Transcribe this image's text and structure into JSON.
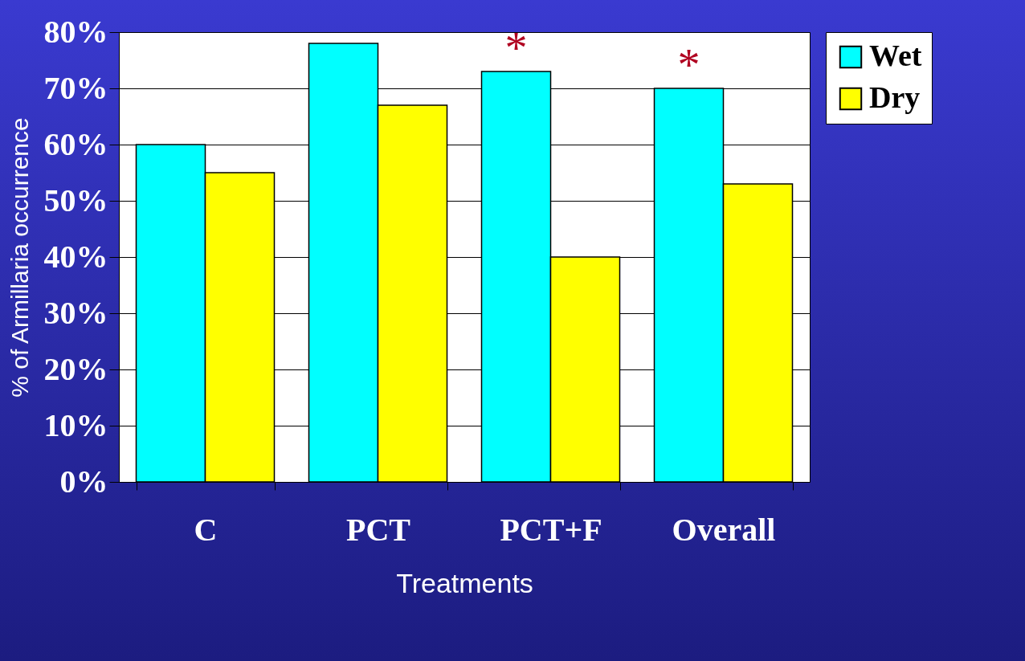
{
  "chart_data": {
    "type": "bar",
    "xlabel": "Treatments",
    "ylabel": "% of Armillaria occurrence",
    "categories": [
      "C",
      "PCT",
      "PCT+F",
      "Overall"
    ],
    "series": [
      {
        "name": "Wet",
        "color": "#00ffff",
        "values": [
          60,
          78,
          73,
          70
        ]
      },
      {
        "name": "Dry",
        "color": "#ffff00",
        "values": [
          55,
          67,
          40,
          53
        ]
      }
    ],
    "ylim": [
      0,
      80
    ],
    "yticks": [
      {
        "value": 0,
        "label": "0%"
      },
      {
        "value": 10,
        "label": "10%"
      },
      {
        "value": 20,
        "label": "20%"
      },
      {
        "value": 30,
        "label": "30%"
      },
      {
        "value": 40,
        "label": "40%"
      },
      {
        "value": 50,
        "label": "50%"
      },
      {
        "value": 60,
        "label": "60%"
      },
      {
        "value": 70,
        "label": "70%"
      },
      {
        "value": 80,
        "label": "80%"
      }
    ],
    "grid": "y",
    "legend": "right",
    "annotations": [
      {
        "text": "*",
        "x": "PCT+F",
        "y": 73
      },
      {
        "text": "*",
        "x": "Overall",
        "y": 70
      }
    ]
  }
}
